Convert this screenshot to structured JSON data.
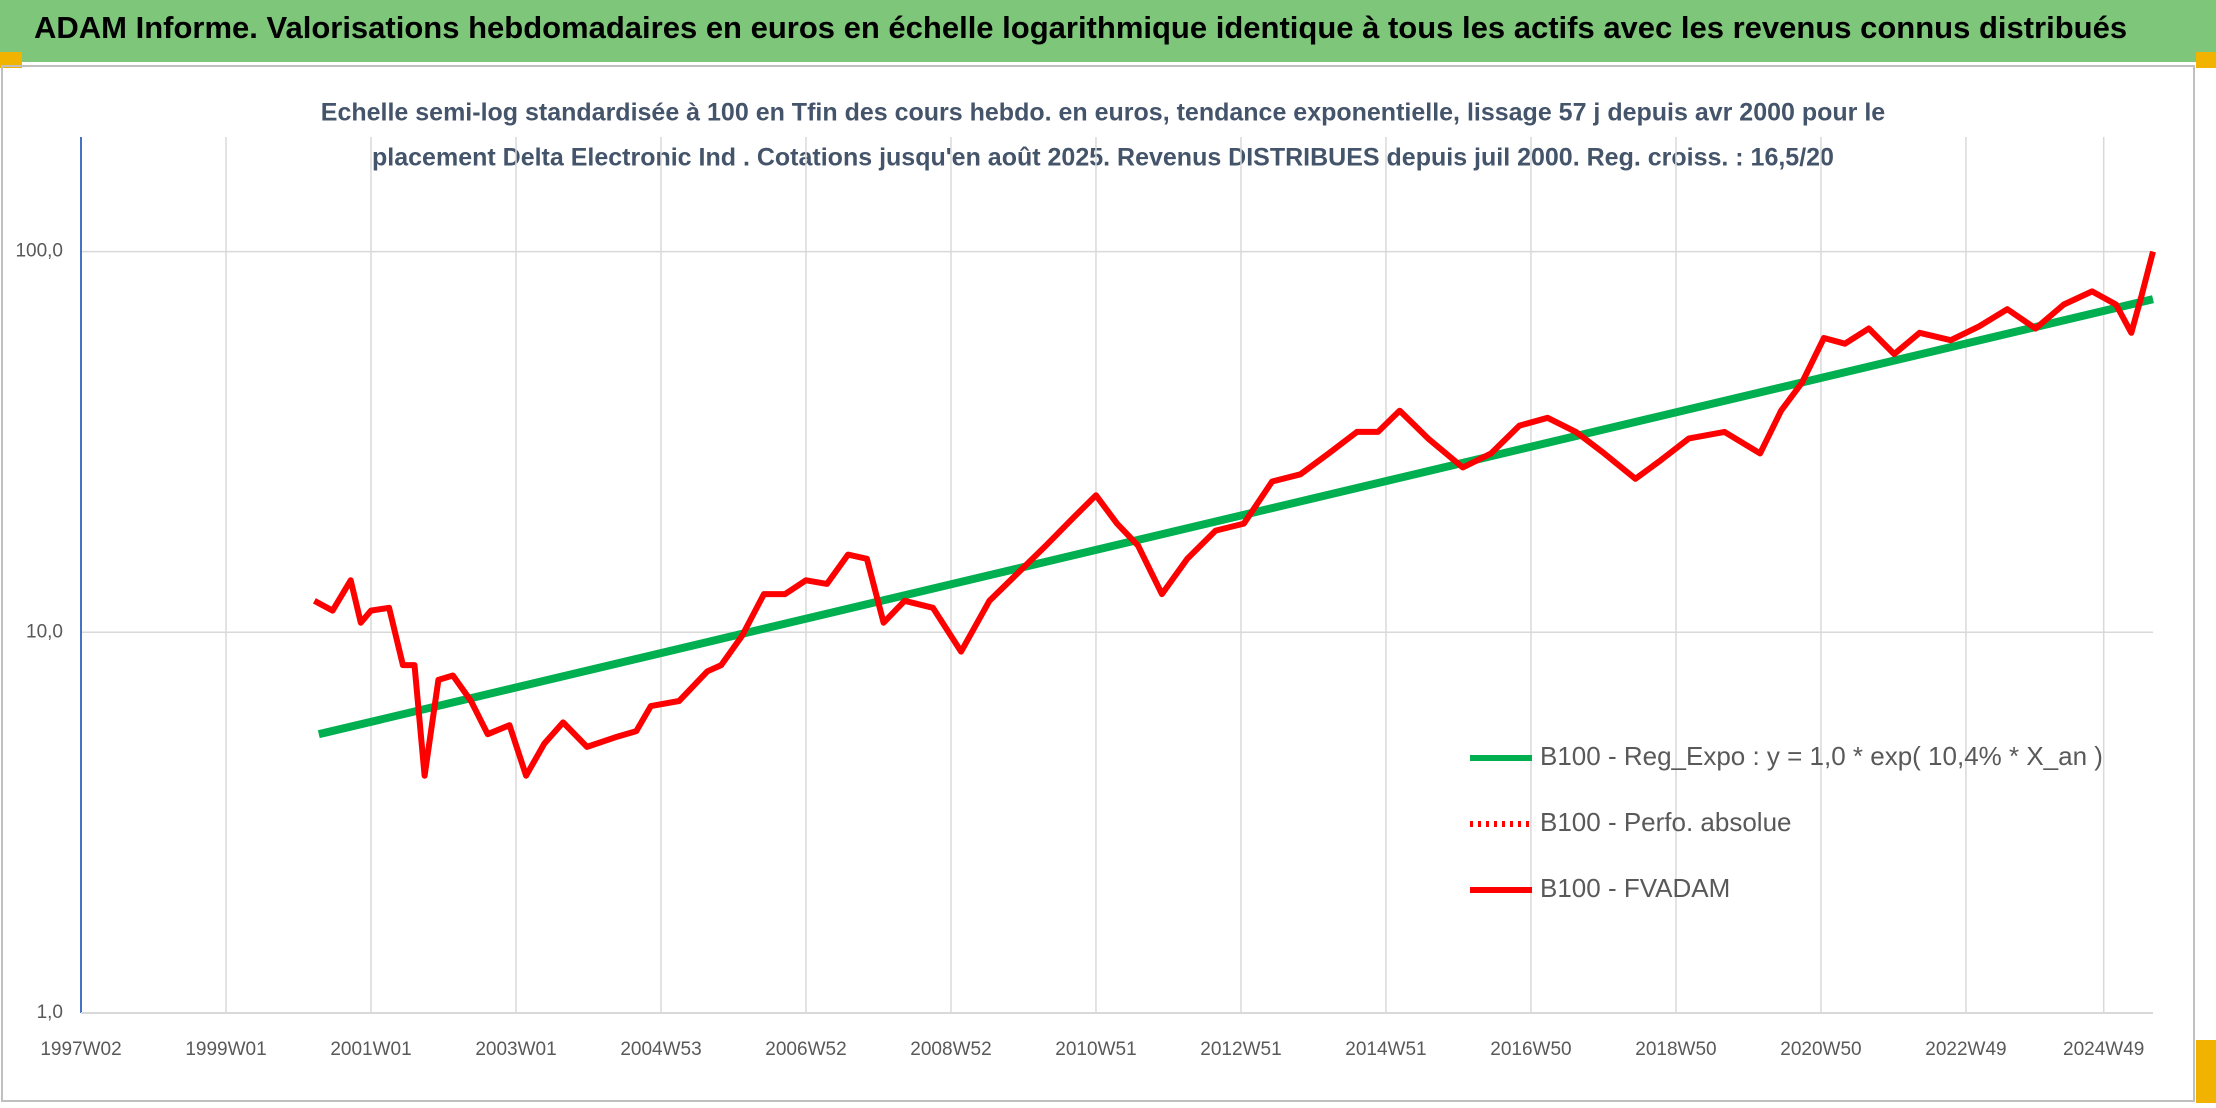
{
  "header": {
    "title": "ADAM Informe. Valorisations hebdomadaires en euros en échelle logarithmique identique à tous les actifs avec les revenus connus distribués"
  },
  "chart_data": {
    "type": "line",
    "subtitle": [
      "Echelle semi-log standardisée à 100 en Tfin des cours hebdo. en euros, tendance exponentielle, lissage 57 j depuis avr 2000 pour le",
      "placement Delta Electronic Ind . Cotations jusqu'en août 2025. Revenus DISTRIBUES depuis juil 2000. Reg. croiss. : 16,5/20"
    ],
    "log_y": true,
    "grid": true,
    "legend_loc": "lower right",
    "ylim": [
      1,
      200
    ],
    "yticks": [
      {
        "value": 1,
        "label": "1,0"
      },
      {
        "value": 10,
        "label": "10,0"
      },
      {
        "value": 100,
        "label": "100,0"
      }
    ],
    "xlim": [
      1997.0,
      2025.58
    ],
    "xticks": [
      {
        "value": 1997.0,
        "label": "1997W02"
      },
      {
        "value": 1999.0,
        "label": "1999W01"
      },
      {
        "value": 2001.0,
        "label": "2001W01"
      },
      {
        "value": 2003.0,
        "label": "2003W01"
      },
      {
        "value": 2005.0,
        "label": "2004W53"
      },
      {
        "value": 2007.0,
        "label": "2006W52"
      },
      {
        "value": 2009.0,
        "label": "2008W52"
      },
      {
        "value": 2011.0,
        "label": "2010W51"
      },
      {
        "value": 2013.0,
        "label": "2012W51"
      },
      {
        "value": 2015.0,
        "label": "2014W51"
      },
      {
        "value": 2017.0,
        "label": "2016W50"
      },
      {
        "value": 2019.0,
        "label": "2018W50"
      },
      {
        "value": 2021.0,
        "label": "2020W50"
      },
      {
        "value": 2023.0,
        "label": "2022W49"
      },
      {
        "value": 2024.9,
        "label": "2024W49"
      }
    ],
    "series": [
      {
        "name": "B100 - Reg_Expo : y = 1,0 * exp( 10,4% *  X_an )",
        "color": "#00b050",
        "style": "solid",
        "x": [
          2000.28,
          2025.58
        ],
        "values": [
          5.4,
          75
        ]
      },
      {
        "name": "B100 - Perfo. absolue",
        "color": "#ff0000",
        "style": "dotted",
        "x": [],
        "values": []
      },
      {
        "name": "B100 - FVADAM",
        "color": "#ff0000",
        "style": "solid",
        "x": [
          2000.22,
          2000.47,
          2000.72,
          2000.86,
          2001.0,
          2001.25,
          2001.44,
          2001.6,
          2001.74,
          2001.93,
          2002.13,
          2002.38,
          2002.61,
          2002.91,
          2003.14,
          2003.39,
          2003.65,
          2003.98,
          2004.37,
          2004.66,
          2004.86,
          2005.25,
          2005.64,
          2005.83,
          2006.12,
          2006.42,
          2006.71,
          2007.0,
          2007.29,
          2007.58,
          2007.84,
          2008.07,
          2008.36,
          2008.75,
          2009.14,
          2009.53,
          2009.92,
          2010.31,
          2010.7,
          2011.0,
          2011.29,
          2011.58,
          2011.91,
          2012.26,
          2012.65,
          2013.04,
          2013.43,
          2013.82,
          2014.21,
          2014.6,
          2014.89,
          2015.19,
          2015.58,
          2016.06,
          2016.45,
          2016.84,
          2017.23,
          2017.62,
          2018.01,
          2018.44,
          2018.79,
          2019.18,
          2019.67,
          2020.16,
          2020.45,
          2020.74,
          2021.04,
          2021.33,
          2021.66,
          2022.01,
          2022.36,
          2022.79,
          2023.18,
          2023.57,
          2023.96,
          2024.35,
          2024.74,
          2025.07,
          2025.28,
          2025.42,
          2025.58
        ],
        "values": [
          12.1,
          11.4,
          13.7,
          10.6,
          11.4,
          11.6,
          8.2,
          8.2,
          4.2,
          7.5,
          7.7,
          6.6,
          5.4,
          5.7,
          4.2,
          5.1,
          5.8,
          5.0,
          5.3,
          5.5,
          6.4,
          6.6,
          7.9,
          8.2,
          9.8,
          12.6,
          12.6,
          13.7,
          13.4,
          16.0,
          15.6,
          10.6,
          12.1,
          11.6,
          8.9,
          12.1,
          14.3,
          16.9,
          20.1,
          22.9,
          19.3,
          16.9,
          12.6,
          15.6,
          18.5,
          19.3,
          24.9,
          26.0,
          29.5,
          33.6,
          33.6,
          38.2,
          32.3,
          27.1,
          29.5,
          34.9,
          36.6,
          33.6,
          29.5,
          25.3,
          28.3,
          32.3,
          33.6,
          29.5,
          38.2,
          45.3,
          59.3,
          57.3,
          62.8,
          53.8,
          61.2,
          58.5,
          63.6,
          70.6,
          62.8,
          72.6,
          78.6,
          72.6,
          61.2,
          76.3,
          100
        ]
      }
    ]
  }
}
